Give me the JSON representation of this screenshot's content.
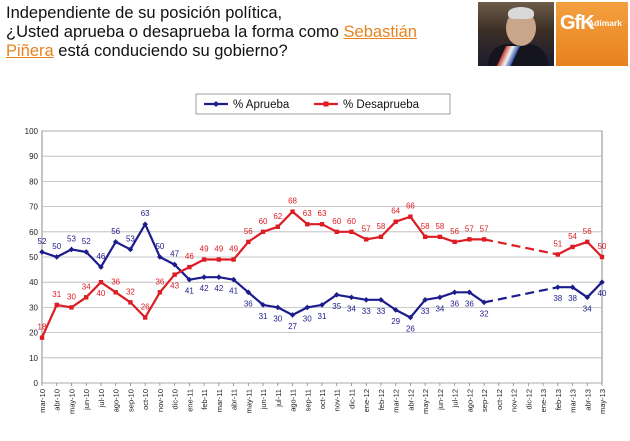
{
  "header": {
    "line1": "Independiente de su posición política,",
    "line2_pre": "¿Usted aprueba o desaprueba la forma como ",
    "name1": "Sebastián",
    "name2": "Piñera",
    "line3_post": " está conduciendo su gobierno?",
    "photo_icon": "president-portrait",
    "logo_text": "GfK",
    "logo_subtext": "Adimark"
  },
  "chart_data": {
    "type": "line",
    "title": "",
    "xlabel": "",
    "ylabel": "",
    "ylim": [
      0,
      100
    ],
    "yticks": [
      0,
      10,
      20,
      30,
      40,
      50,
      60,
      70,
      80,
      90,
      100
    ],
    "grid": true,
    "legend_position": "top-center",
    "categories": [
      "mar-10",
      "abr-10",
      "may-10",
      "jun-10",
      "jul-10",
      "ago-10",
      "sep-10",
      "oct-10",
      "nov-10",
      "dic-10",
      "ene-11",
      "feb-11",
      "mar-11",
      "abr-11",
      "may-11",
      "jun-11",
      "jul-11",
      "ago-11",
      "sep-11",
      "oct-11",
      "nov-11",
      "dic-11",
      "ene-12",
      "feb-12",
      "mar-12",
      "abr-12",
      "may-12",
      "jun-12",
      "jul-12",
      "ago-12",
      "sep-12",
      "oct-12",
      "nov-12",
      "dic-12",
      "ene-13",
      "feb-13",
      "mar-13",
      "abr-13",
      "may-13"
    ],
    "series": [
      {
        "name": "% Aprueba",
        "color": "#1c1c8c",
        "marker": "diamond",
        "values": [
          52,
          50,
          53,
          52,
          46,
          56,
          53,
          63,
          50,
          47,
          41,
          42,
          42,
          41,
          36,
          31,
          30,
          27,
          30,
          31,
          35,
          34,
          33,
          33,
          29,
          26,
          33,
          34,
          36,
          36,
          32,
          null,
          null,
          null,
          null,
          38,
          38,
          34,
          40
        ],
        "labels": [
          "52",
          "50",
          "53",
          "52",
          "46",
          "56",
          "53",
          "63",
          "50",
          "47",
          "41",
          "42",
          "42",
          "41",
          "36",
          "31",
          "30",
          "27",
          "30",
          "31",
          "35",
          "34",
          "33",
          "33",
          "29",
          "26",
          "33",
          "34",
          "36",
          "36",
          "32",
          "",
          "",
          "",
          "",
          "38",
          "38",
          "34",
          "40"
        ]
      },
      {
        "name": "% Desaprueba",
        "color": "#dd1c24",
        "marker": "square",
        "values": [
          18,
          31,
          30,
          34,
          40,
          36,
          32,
          26,
          36,
          43,
          46,
          49,
          49,
          49,
          56,
          60,
          62,
          68,
          63,
          63,
          60,
          60,
          57,
          58,
          64,
          66,
          58,
          58,
          56,
          57,
          57,
          null,
          null,
          null,
          null,
          51,
          54,
          56,
          50
        ],
        "labels": [
          "18",
          "31",
          "30",
          "34",
          "40",
          "36",
          "32",
          "26",
          "36",
          "43",
          "46",
          "49",
          "49",
          "49",
          "56",
          "60",
          "62",
          "68",
          "63",
          "63",
          "60",
          "60",
          "57",
          "58",
          "64",
          "66",
          "58",
          "58",
          "56",
          "57",
          "57",
          "",
          "",
          "",
          "",
          "51",
          "54",
          "56",
          "50"
        ]
      }
    ]
  }
}
